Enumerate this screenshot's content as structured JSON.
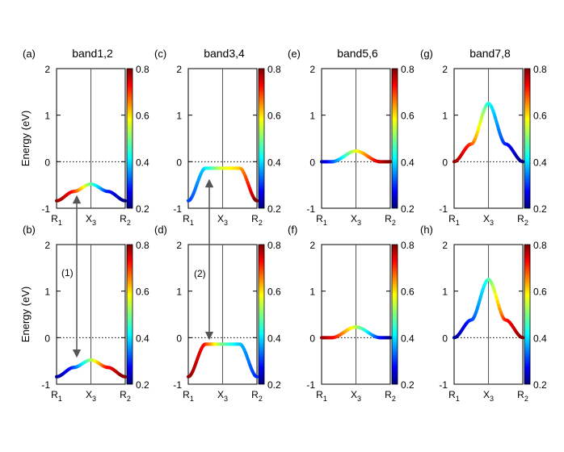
{
  "ylabel": "Energy (eV)",
  "colorbar_ticks": [
    "0.8",
    "0.6",
    "0.4",
    "0.2"
  ],
  "x_ticks": [
    "R1",
    "X3",
    "R2"
  ],
  "y_ticks": [
    "2",
    "1",
    "0",
    "-1"
  ],
  "arrows": [
    {
      "label": "(1)"
    },
    {
      "label": "(2)"
    }
  ],
  "chart_data": [
    {
      "panel": "(a)",
      "title": "band1,2",
      "type": "line",
      "xlabel": "",
      "ylabel": "Energy (eV)",
      "ylim": [
        -1,
        2
      ],
      "colorbar_range": [
        0.2,
        0.8
      ],
      "colorscale": "jet",
      "x": [
        0,
        0.25,
        0.5,
        0.75,
        1
      ],
      "y": [
        -0.84,
        -0.64,
        -0.48,
        -0.64,
        -0.84
      ],
      "color_value": [
        0.8,
        0.72,
        0.5,
        0.3,
        0.2
      ]
    },
    {
      "panel": "(c)",
      "title": "band3,4",
      "type": "line",
      "ylim": [
        -1,
        2
      ],
      "colorbar_range": [
        0.2,
        0.8
      ],
      "colorscale": "jet",
      "x": [
        0,
        0.25,
        0.5,
        0.75,
        1
      ],
      "y": [
        -0.84,
        -0.14,
        -0.14,
        -0.14,
        -0.84
      ],
      "color_value": [
        0.3,
        0.4,
        0.55,
        0.6,
        0.8
      ]
    },
    {
      "panel": "(e)",
      "title": "band5,6",
      "type": "line",
      "ylim": [
        -1,
        2
      ],
      "colorbar_range": [
        0.2,
        0.8
      ],
      "colorscale": "jet",
      "x": [
        0,
        0.15,
        0.5,
        0.85,
        1
      ],
      "y": [
        0.0,
        0.0,
        0.23,
        0.0,
        0.0
      ],
      "color_value": [
        0.2,
        0.3,
        0.55,
        0.75,
        0.8
      ]
    },
    {
      "panel": "(g)",
      "title": "band7,8",
      "type": "line",
      "ylim": [
        -1,
        2
      ],
      "colorbar_range": [
        0.2,
        0.8
      ],
      "colorscale": "jet",
      "x": [
        0,
        0.25,
        0.5,
        0.75,
        1
      ],
      "y": [
        0.0,
        0.38,
        1.25,
        0.38,
        0.0
      ],
      "color_value": [
        0.8,
        0.7,
        0.45,
        0.3,
        0.2
      ]
    },
    {
      "panel": "(b)",
      "title": "",
      "type": "line",
      "ylim": [
        -1,
        2
      ],
      "colorbar_range": [
        0.2,
        0.8
      ],
      "colorscale": "jet",
      "x": [
        0,
        0.25,
        0.5,
        0.75,
        1
      ],
      "y": [
        -0.84,
        -0.64,
        -0.48,
        -0.64,
        -0.84
      ],
      "color_value": [
        0.2,
        0.3,
        0.5,
        0.72,
        0.8
      ]
    },
    {
      "panel": "(d)",
      "title": "",
      "type": "line",
      "ylim": [
        -1,
        2
      ],
      "colorbar_range": [
        0.2,
        0.8
      ],
      "colorscale": "jet",
      "x": [
        0,
        0.25,
        0.5,
        0.75,
        1
      ],
      "y": [
        -0.84,
        -0.14,
        -0.14,
        -0.14,
        -0.84
      ],
      "color_value": [
        0.8,
        0.72,
        0.5,
        0.4,
        0.3
      ]
    },
    {
      "panel": "(f)",
      "title": "",
      "type": "line",
      "ylim": [
        -1,
        2
      ],
      "colorbar_range": [
        0.2,
        0.8
      ],
      "colorscale": "jet",
      "x": [
        0,
        0.15,
        0.5,
        0.85,
        1
      ],
      "y": [
        0.0,
        0.0,
        0.23,
        0.0,
        0.0
      ],
      "color_value": [
        0.8,
        0.75,
        0.55,
        0.3,
        0.2
      ]
    },
    {
      "panel": "(h)",
      "title": "",
      "type": "line",
      "ylim": [
        -1,
        2
      ],
      "colorbar_range": [
        0.2,
        0.8
      ],
      "colorscale": "jet",
      "x": [
        0,
        0.25,
        0.5,
        0.75,
        1
      ],
      "y": [
        0.0,
        0.38,
        1.25,
        0.38,
        0.0
      ],
      "color_value": [
        0.2,
        0.3,
        0.45,
        0.7,
        0.8
      ]
    }
  ]
}
